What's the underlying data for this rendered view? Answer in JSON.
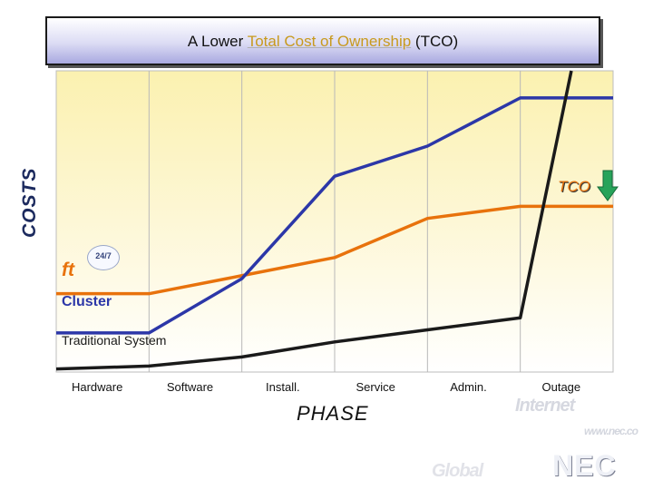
{
  "title": {
    "prefix": "A Lower ",
    "highlight": "Total Cost of Ownership",
    "suffix": " (TCO)"
  },
  "axis": {
    "ylabel": "COSTS",
    "xlabel": "PHASE"
  },
  "chart_data": {
    "type": "line",
    "title": "A Lower Total Cost of Ownership (TCO)",
    "xlabel": "PHASE",
    "ylabel": "COSTS",
    "categories": [
      "Hardware",
      "Software",
      "Install.",
      "Service",
      "Admin.",
      "Outage"
    ],
    "ylim": [
      0,
      100
    ],
    "grid": "vertical",
    "series": [
      {
        "name": "ft",
        "color": "#e8720c",
        "points": [
          [
            0.0,
            26
          ],
          [
            1.0,
            26
          ],
          [
            2.0,
            32
          ],
          [
            3.0,
            38
          ],
          [
            4.0,
            51
          ],
          [
            5.0,
            55
          ],
          [
            6.0,
            55
          ]
        ]
      },
      {
        "name": "Cluster",
        "color": "#2c37a8",
        "points": [
          [
            0.0,
            13
          ],
          [
            1.0,
            13
          ],
          [
            2.0,
            31
          ],
          [
            3.0,
            65
          ],
          [
            4.0,
            75
          ],
          [
            5.0,
            91
          ],
          [
            6.0,
            91
          ]
        ]
      },
      {
        "name": "Traditional System",
        "color": "#1a1a1a",
        "points": [
          [
            0.0,
            1
          ],
          [
            1.0,
            2
          ],
          [
            2.0,
            5
          ],
          [
            3.0,
            10
          ],
          [
            4.0,
            14
          ],
          [
            5.0,
            18
          ],
          [
            5.55,
            100
          ]
        ]
      }
    ],
    "annotations": [
      {
        "text": "TCO",
        "color": "#e8720c",
        "arrow": "down",
        "arrow_color": "#27a35a"
      }
    ]
  },
  "badge": "24/7",
  "background": {
    "internet": "Internet",
    "www": "www.nec.co",
    "global": "Global",
    "logo": "NEC"
  }
}
